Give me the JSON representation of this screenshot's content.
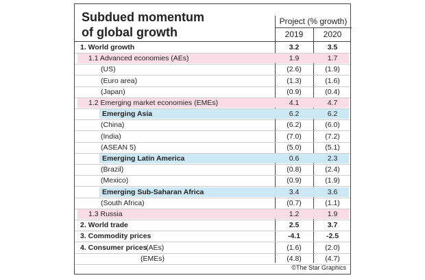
{
  "title": "Subdued momentum of global growth",
  "header": {
    "group": "Project (% growth)",
    "columns": [
      "2019",
      "2020"
    ]
  },
  "rows": [
    {
      "label": "1. World growth",
      "values": [
        "3.2",
        "3.5"
      ]
    },
    {
      "label": "1.1 Advanced economies (AEs)",
      "values": [
        "1.9",
        "1.7"
      ]
    },
    {
      "label": "(US)",
      "values": [
        "(2.6)",
        "(1.9)"
      ]
    },
    {
      "label": "(Euro area)",
      "values": [
        "(1.3)",
        "(1.6)"
      ]
    },
    {
      "label": "(Japan)",
      "values": [
        "(0.9)",
        "(0.4)"
      ]
    },
    {
      "label": "1.2 Emerging market economies (EMEs)",
      "values": [
        "4.1",
        "4.7"
      ]
    },
    {
      "label": "Emerging Asia",
      "values": [
        "6.2",
        "6.2"
      ]
    },
    {
      "label": "(China)",
      "values": [
        "(6.2)",
        "(6.0)"
      ]
    },
    {
      "label": "(India)",
      "values": [
        "(7.0)",
        "(7.2)"
      ]
    },
    {
      "label": "(ASEAN 5)",
      "values": [
        "(5.0)",
        "(5.1)"
      ]
    },
    {
      "label": "Emerging Latin America",
      "values": [
        "0.6",
        "2.3"
      ]
    },
    {
      "label": "(Brazil)",
      "values": [
        "(0.8)",
        "(2.4)"
      ]
    },
    {
      "label": "(Mexico)",
      "values": [
        "(0.9)",
        "(1.9)"
      ]
    },
    {
      "label": "Emerging Sub-Saharan Africa",
      "values": [
        "3.4",
        "3.6"
      ]
    },
    {
      "label": "(South Africa)",
      "values": [
        "(0.7)",
        "(1.1)"
      ]
    },
    {
      "label": "1.3 Russia",
      "values": [
        "1.2",
        "1.9"
      ]
    },
    {
      "label": "2. World trade",
      "values": [
        "2.5",
        "3.7"
      ]
    },
    {
      "label": "3. Commodity prices",
      "values": [
        "-4.1",
        "-2.5"
      ]
    },
    {
      "label": "4. Consumer prices",
      "sublabel": "(AEs)",
      "values": [
        "(1.6)",
        "(2.0)"
      ]
    },
    {
      "label": "(EMEs)",
      "values": [
        "(4.8)",
        "(4.7)"
      ]
    }
  ],
  "footer": "©The Star Graphics"
}
